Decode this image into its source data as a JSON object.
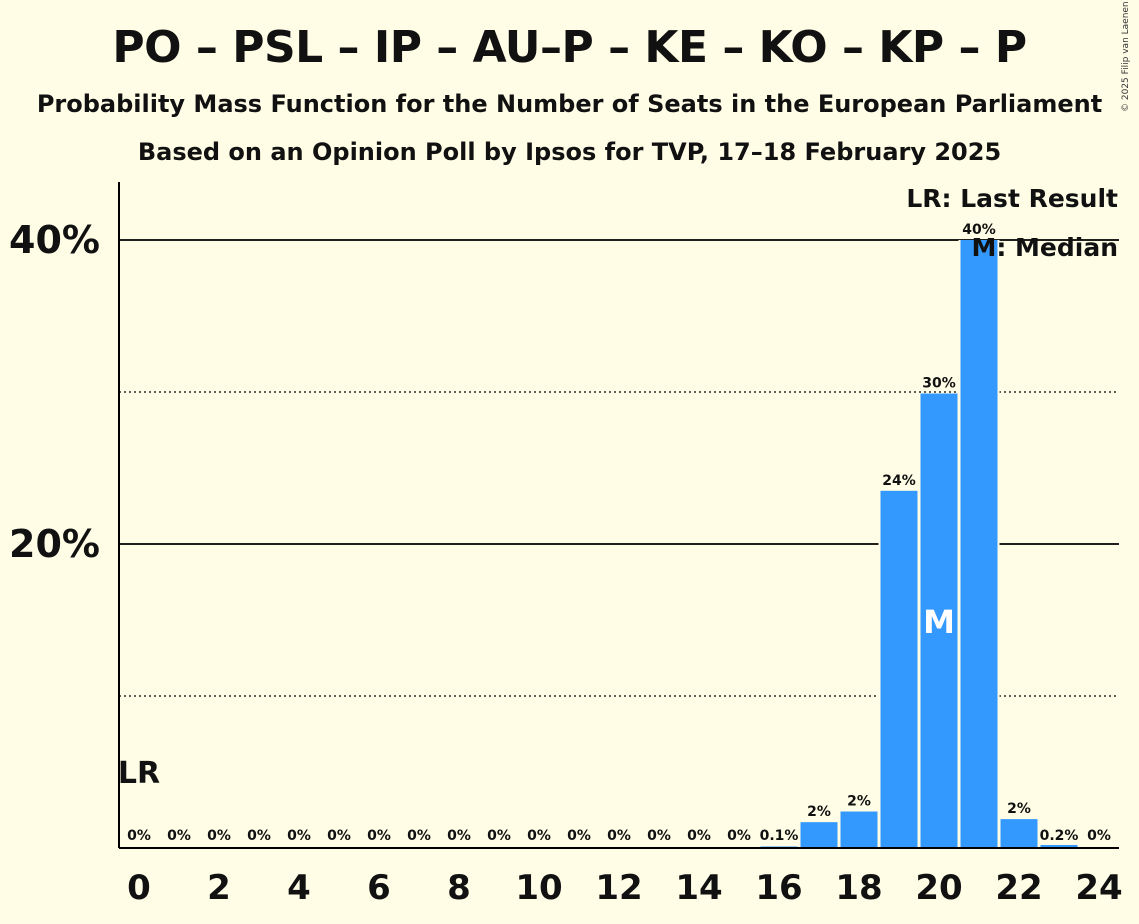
{
  "chart_data": {
    "type": "bar",
    "title": "PO – PSL – IP – AU–P – KE – KO – KP – P",
    "subtitle": "Probability Mass Function for the Number of Seats in the European Parliament",
    "subtitle2": "Based on an Opinion Poll by Ipsos for TVP, 17–18 February 2025",
    "x": [
      0,
      1,
      2,
      3,
      4,
      5,
      6,
      7,
      8,
      9,
      10,
      11,
      12,
      13,
      14,
      15,
      16,
      17,
      18,
      19,
      20,
      21,
      22,
      23,
      24
    ],
    "values": [
      0,
      0,
      0,
      0,
      0,
      0,
      0,
      0,
      0,
      0,
      0,
      0,
      0,
      0,
      0,
      0,
      0.1,
      1.7,
      2.4,
      23.5,
      29.9,
      40.0,
      1.9,
      0.2,
      0
    ],
    "value_labels": [
      "0%",
      "0%",
      "0%",
      "0%",
      "0%",
      "0%",
      "0%",
      "0%",
      "0%",
      "0%",
      "0%",
      "0%",
      "0%",
      "0%",
      "0%",
      "0%",
      "0.1%",
      "2%",
      "2%",
      "24%",
      "30%",
      "40%",
      "2%",
      "0.2%",
      "0%"
    ],
    "x_tick_labels": [
      "0",
      "2",
      "4",
      "6",
      "8",
      "10",
      "12",
      "14",
      "16",
      "18",
      "20",
      "22",
      "24"
    ],
    "y_tick_labels": [
      "20%",
      "40%"
    ],
    "ylim": [
      0,
      44
    ],
    "bar_color": "#3399ff",
    "last_result_seat": 0,
    "last_result_marker": "LR",
    "median_seat": 20,
    "median_marker": "M",
    "legend": {
      "last_result": "LR: Last Result",
      "median": "M: Median",
      "placement": "top-right"
    },
    "copyright": "© 2025 Filip van Laenen"
  }
}
